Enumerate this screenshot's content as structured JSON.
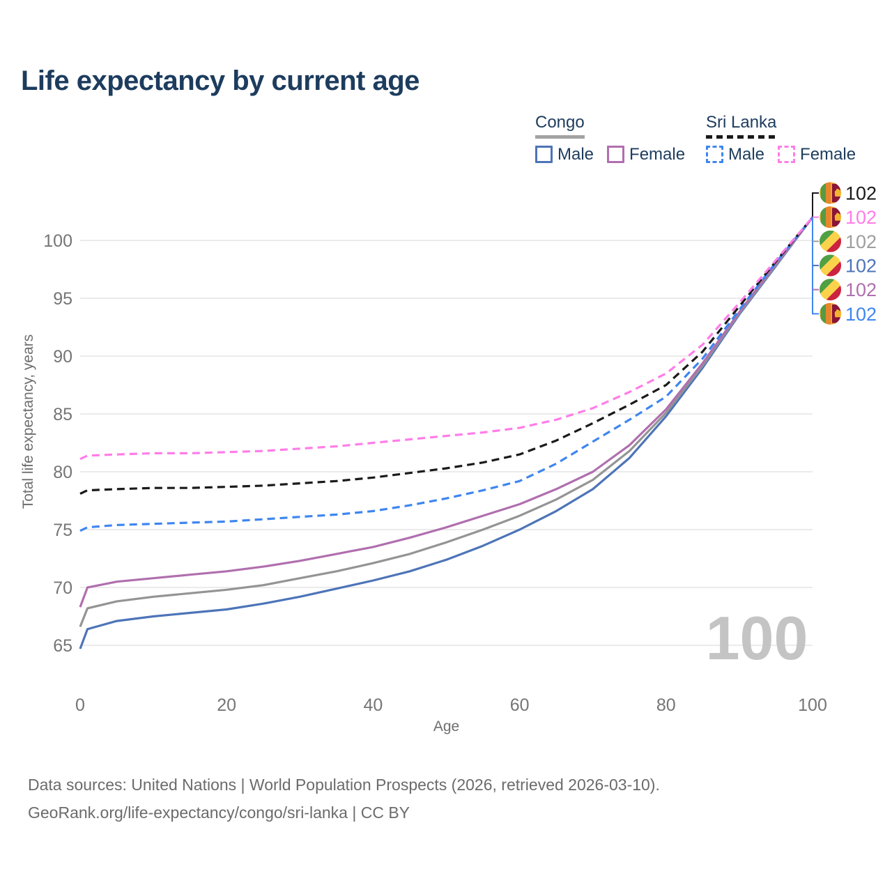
{
  "title": "Life expectancy by current age",
  "legend": {
    "groups": [
      {
        "country": "Congo",
        "style": "solid",
        "underline_color": "#a3a3a3",
        "items": [
          {
            "label": "Male",
            "color": "#4d74b8"
          },
          {
            "label": "Female",
            "color": "#b06fae"
          }
        ]
      },
      {
        "country": "Sri Lanka",
        "style": "dashed",
        "underline_color": "#1a1a1a",
        "items": [
          {
            "label": "Male",
            "color": "#3e86f0"
          },
          {
            "label": "Female",
            "color": "#ff7de8"
          }
        ]
      }
    ]
  },
  "chart_data": {
    "type": "line",
    "title": "Life expectancy by current age",
    "xlabel": "Age",
    "ylabel": "Total life expectancy, years",
    "x_ticks": [
      0,
      20,
      40,
      60,
      80,
      100
    ],
    "y_ticks": [
      65,
      70,
      75,
      80,
      85,
      90,
      95,
      100
    ],
    "xlim": [
      0,
      100
    ],
    "ylim": [
      63,
      103
    ],
    "grid": "horizontal-only",
    "legend_position": "top-right",
    "x": [
      0,
      1,
      5,
      10,
      15,
      20,
      25,
      30,
      35,
      40,
      45,
      50,
      55,
      60,
      65,
      70,
      75,
      80,
      85,
      90,
      95,
      100
    ],
    "series": [
      {
        "name": "Congo Male",
        "country": "Congo",
        "sex": "male",
        "color": "#4d74b8",
        "dash": false,
        "values": [
          64.7,
          66.4,
          67.1,
          67.5,
          67.8,
          68.1,
          68.6,
          69.2,
          69.9,
          70.6,
          71.4,
          72.4,
          73.6,
          75.0,
          76.6,
          78.5,
          81.2,
          84.8,
          89.0,
          93.6,
          97.8,
          102
        ]
      },
      {
        "name": "Congo (all)",
        "country": "Congo",
        "sex": "all",
        "color": "#949494",
        "dash": false,
        "values": [
          66.6,
          68.2,
          68.8,
          69.2,
          69.5,
          69.8,
          70.2,
          70.8,
          71.4,
          72.1,
          72.9,
          73.9,
          75.0,
          76.2,
          77.6,
          79.3,
          81.8,
          85.1,
          89.2,
          93.7,
          97.9,
          102
        ]
      },
      {
        "name": "Congo Female",
        "country": "Congo",
        "sex": "female",
        "color": "#b06fae",
        "dash": false,
        "values": [
          68.3,
          70.0,
          70.5,
          70.8,
          71.1,
          71.4,
          71.8,
          72.3,
          72.9,
          73.5,
          74.3,
          75.2,
          76.2,
          77.2,
          78.5,
          80.0,
          82.3,
          85.4,
          89.4,
          93.8,
          98.0,
          102
        ]
      },
      {
        "name": "Sri Lanka Male",
        "country": "Sri Lanka",
        "sex": "male",
        "color": "#3e86f0",
        "dash": true,
        "values": [
          74.9,
          75.2,
          75.4,
          75.5,
          75.6,
          75.7,
          75.9,
          76.1,
          76.3,
          76.6,
          77.1,
          77.7,
          78.4,
          79.2,
          80.7,
          82.6,
          84.5,
          86.5,
          89.8,
          94.0,
          98.1,
          102
        ]
      },
      {
        "name": "Sri Lanka (all)",
        "country": "Sri Lanka",
        "sex": "all",
        "color": "#1a1a1a",
        "dash": true,
        "values": [
          78.1,
          78.4,
          78.5,
          78.6,
          78.6,
          78.7,
          78.8,
          79.0,
          79.2,
          79.5,
          79.9,
          80.3,
          80.8,
          81.5,
          82.7,
          84.2,
          85.8,
          87.5,
          90.4,
          94.3,
          98.2,
          102
        ]
      },
      {
        "name": "Sri Lanka Female",
        "country": "Sri Lanka",
        "sex": "female",
        "color": "#ff7de8",
        "dash": true,
        "values": [
          81.1,
          81.4,
          81.5,
          81.6,
          81.6,
          81.7,
          81.8,
          82.0,
          82.2,
          82.5,
          82.8,
          83.1,
          83.4,
          83.8,
          84.5,
          85.5,
          86.9,
          88.5,
          91.0,
          94.6,
          98.3,
          102
        ]
      }
    ]
  },
  "endpoint_labels": [
    {
      "series": "Sri Lanka (all)",
      "flag": "sri-lanka",
      "value": "102",
      "color": "#1a1a1a"
    },
    {
      "series": "Sri Lanka Female",
      "flag": "sri-lanka",
      "value": "102",
      "color": "#ff7de8"
    },
    {
      "series": "Congo (all)",
      "flag": "congo",
      "value": "102",
      "color": "#9e9e9e"
    },
    {
      "series": "Congo Male",
      "flag": "congo",
      "value": "102",
      "color": "#4d74b8"
    },
    {
      "series": "Congo Female",
      "flag": "congo",
      "value": "102",
      "color": "#b06fae"
    },
    {
      "series": "Sri Lanka Male",
      "flag": "sri-lanka",
      "value": "102",
      "color": "#3e86f0"
    }
  ],
  "watermark": "100",
  "footer": {
    "line1": "Data sources: United Nations | World Population Prospects (2026, retrieved 2026-03-10).",
    "line2": "GeoRank.org/life-expectancy/congo/sri-lanka | CC BY"
  }
}
